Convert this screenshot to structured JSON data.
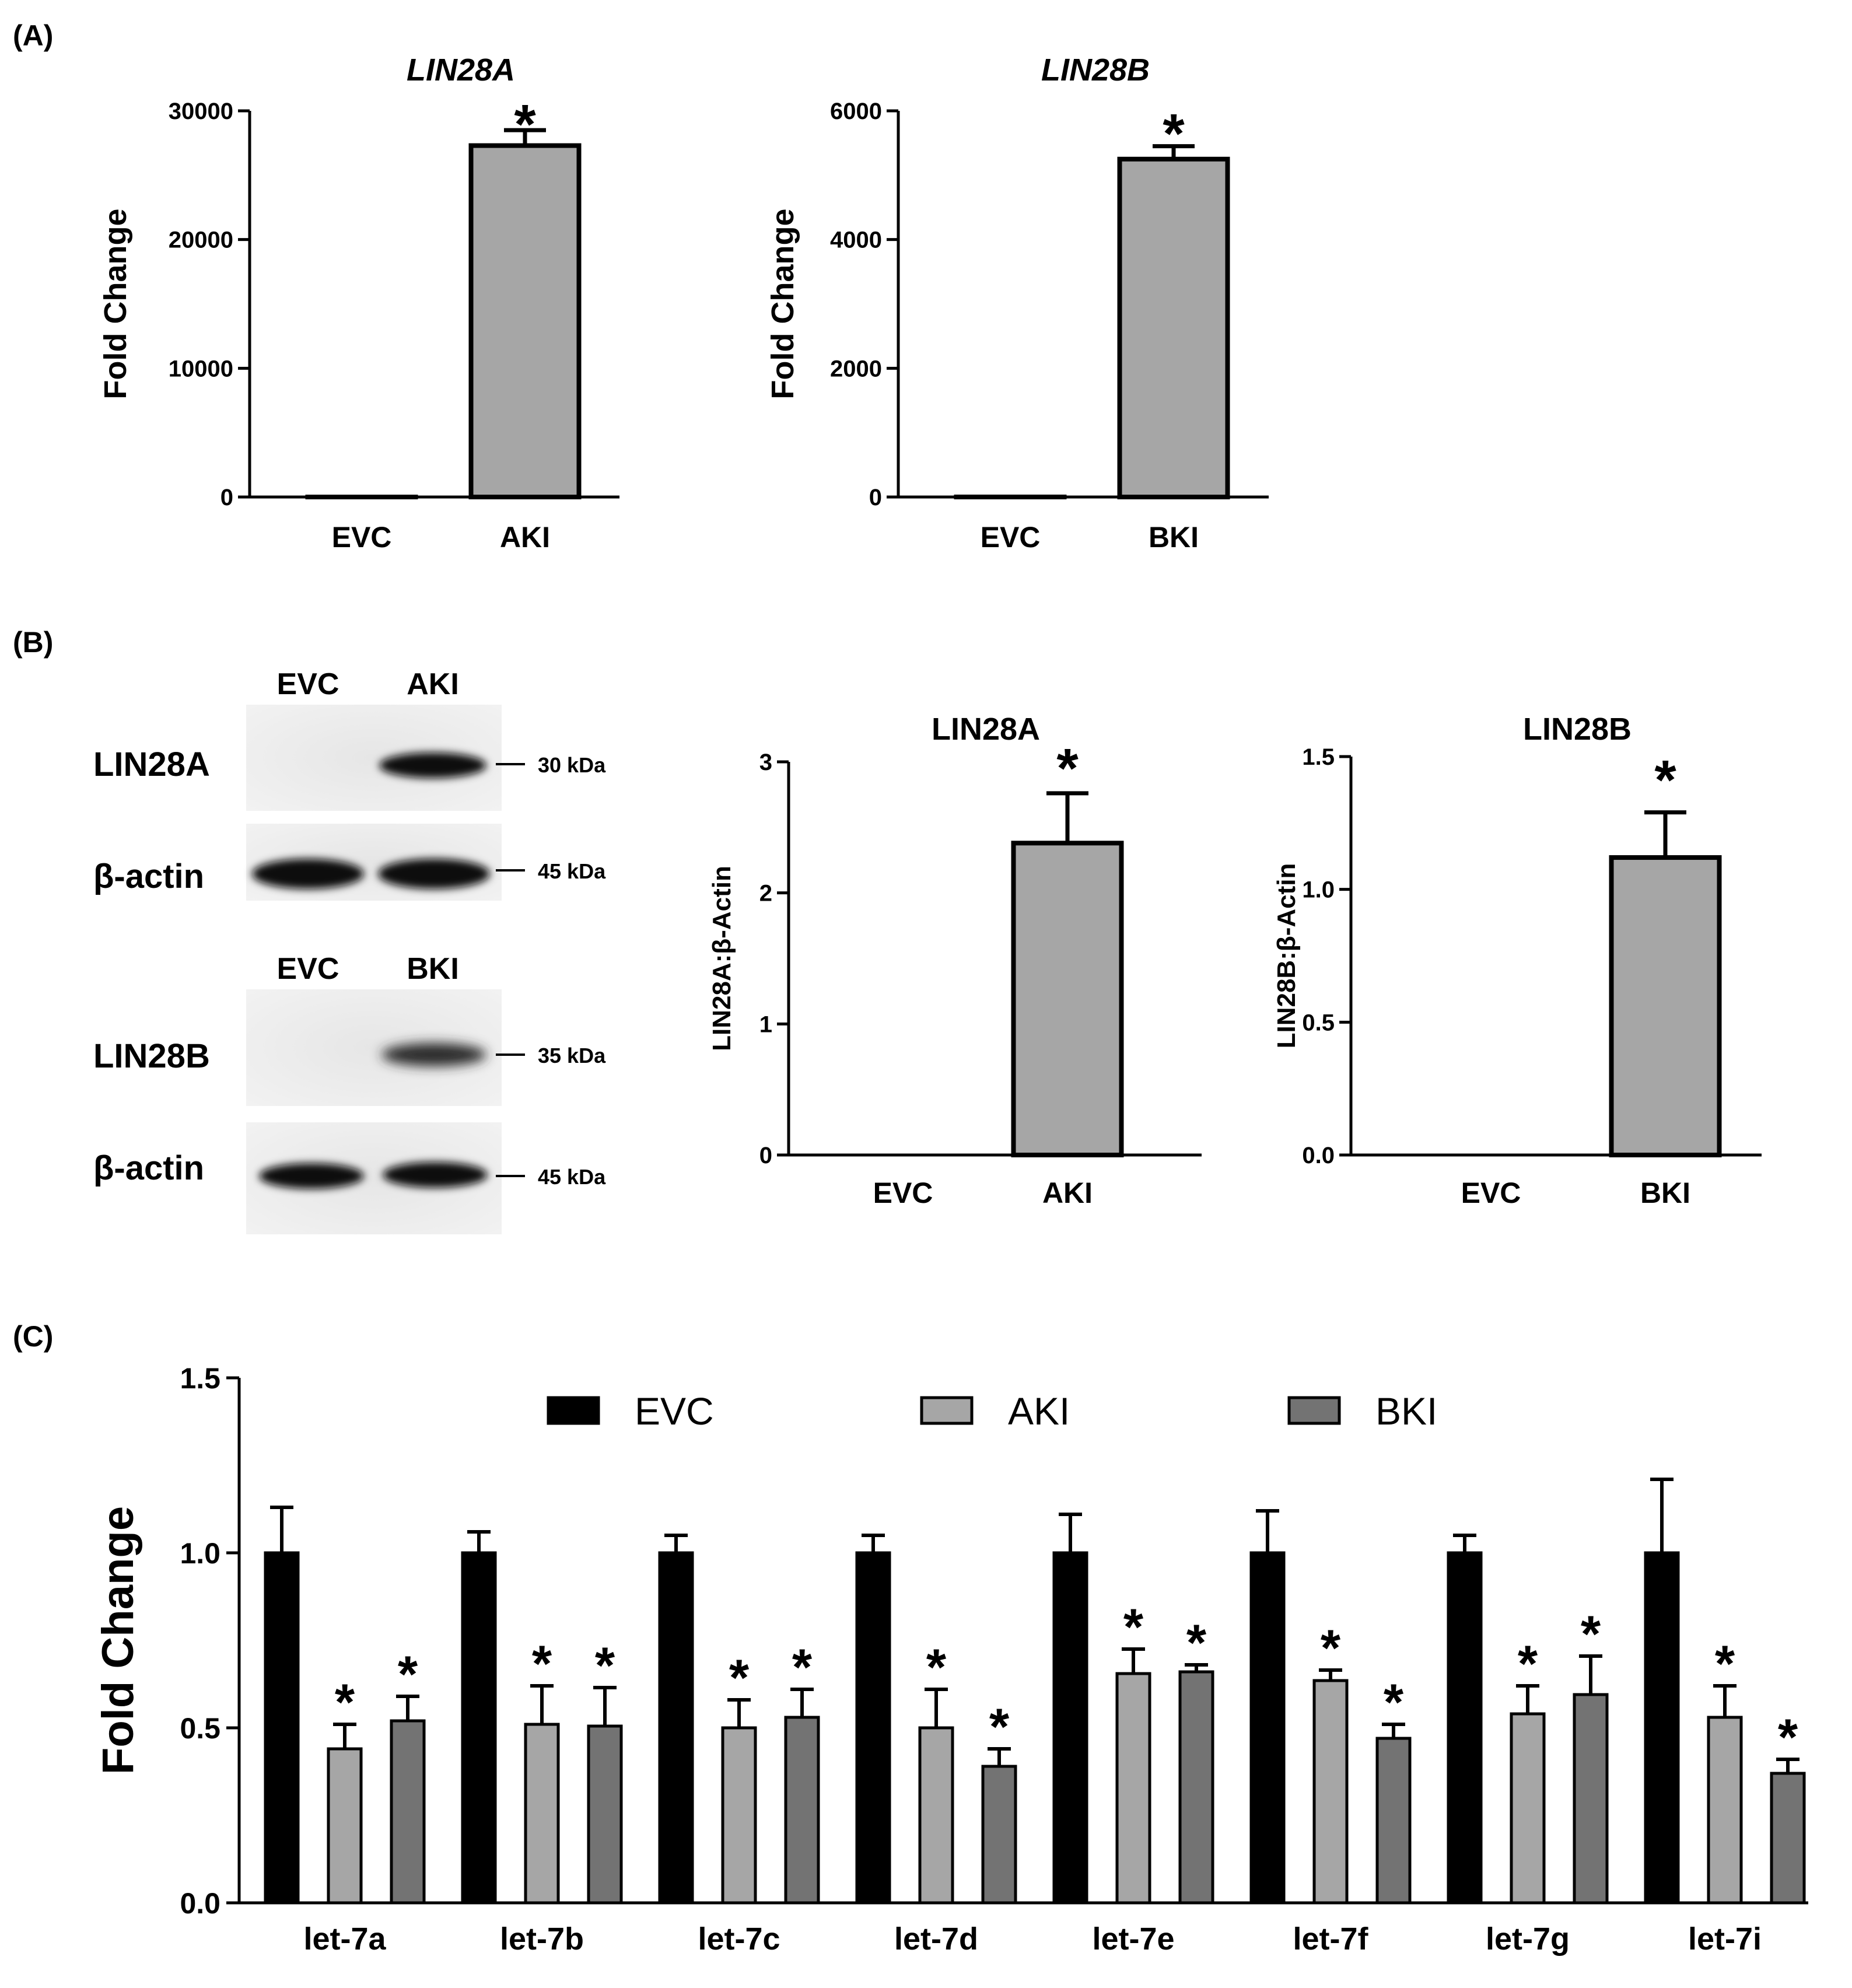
{
  "panels": {
    "a": "(A)",
    "b": "(B)",
    "c": "(C)"
  },
  "chart_data": [
    {
      "id": "a1",
      "type": "bar",
      "title": "LIN28A",
      "title_italic": true,
      "ylabel": "Fold Change",
      "xlabel": "",
      "categories": [
        "EVC",
        "AKI"
      ],
      "values": [
        1,
        27300
      ],
      "errors": [
        0,
        1200
      ],
      "significant": [
        false,
        true
      ],
      "ylim": [
        0,
        30000
      ],
      "yticks": [
        0,
        10000,
        20000,
        30000
      ],
      "ytick_labels": [
        "0",
        "10000",
        "20000",
        "30000"
      ],
      "bar_color": "#a6a6a6"
    },
    {
      "id": "a2",
      "type": "bar",
      "title": "LIN28B",
      "title_italic": true,
      "ylabel": "Fold Change",
      "xlabel": "",
      "categories": [
        "EVC",
        "BKI"
      ],
      "values": [
        1,
        5250
      ],
      "errors": [
        0,
        200
      ],
      "significant": [
        false,
        true
      ],
      "ylim": [
        0,
        6000
      ],
      "yticks": [
        0,
        2000,
        4000,
        6000
      ],
      "ytick_labels": [
        "0",
        "2000",
        "4000",
        "6000"
      ],
      "bar_color": "#a6a6a6"
    },
    {
      "id": "b1",
      "type": "bar",
      "title": "LIN28A",
      "title_italic": false,
      "ylabel": "LIN28A:β-Actin",
      "xlabel": "",
      "categories": [
        "EVC",
        "AKI"
      ],
      "values": [
        0,
        2.38
      ],
      "errors": [
        0,
        0.38
      ],
      "significant": [
        false,
        true
      ],
      "ylim": [
        0,
        3
      ],
      "yticks": [
        0,
        1,
        2,
        3
      ],
      "ytick_labels": [
        "0",
        "1",
        "2",
        "3"
      ],
      "bar_color": "#a6a6a6"
    },
    {
      "id": "b2",
      "type": "bar",
      "title": "LIN28B",
      "title_italic": false,
      "ylabel": "LIN28B:β-Actin",
      "xlabel": "",
      "categories": [
        "EVC",
        "BKI"
      ],
      "values": [
        0,
        1.12
      ],
      "errors": [
        0,
        0.17
      ],
      "significant": [
        false,
        true
      ],
      "ylim": [
        0,
        1.5
      ],
      "yticks": [
        0,
        0.5,
        1.0,
        1.5
      ],
      "ytick_labels": [
        "0.0",
        "0.5",
        "1.0",
        "1.5"
      ],
      "bar_color": "#a6a6a6"
    },
    {
      "id": "c",
      "type": "bar",
      "title": "",
      "ylabel": "Fold Change",
      "xlabel": "",
      "categories": [
        "let-7a",
        "let-7b",
        "let-7c",
        "let-7d",
        "let-7e",
        "let-7f",
        "let-7g",
        "let-7i"
      ],
      "ylim": [
        0,
        1.5
      ],
      "yticks": [
        0,
        0.5,
        1.0,
        1.5
      ],
      "ytick_labels": [
        "0.0",
        "0.5",
        "1.0",
        "1.5"
      ],
      "legend_position": "top",
      "series": [
        {
          "name": "EVC",
          "color": "#000000",
          "values": [
            1.0,
            1.0,
            1.0,
            1.0,
            1.0,
            1.0,
            1.0,
            1.0
          ],
          "errors": [
            0.13,
            0.06,
            0.05,
            0.05,
            0.11,
            0.12,
            0.05,
            0.21
          ],
          "significant": [
            false,
            false,
            false,
            false,
            false,
            false,
            false,
            false
          ]
        },
        {
          "name": "AKI",
          "color": "#a6a6a6",
          "values": [
            0.44,
            0.51,
            0.5,
            0.5,
            0.655,
            0.635,
            0.54,
            0.53
          ],
          "errors": [
            0.07,
            0.11,
            0.08,
            0.11,
            0.07,
            0.03,
            0.08,
            0.09
          ],
          "significant": [
            true,
            true,
            true,
            true,
            true,
            true,
            true,
            true
          ]
        },
        {
          "name": "BKI",
          "color": "#737373",
          "values": [
            0.52,
            0.505,
            0.53,
            0.39,
            0.66,
            0.47,
            0.595,
            0.37
          ],
          "errors": [
            0.07,
            0.11,
            0.08,
            0.05,
            0.02,
            0.04,
            0.11,
            0.04
          ],
          "significant": [
            true,
            true,
            true,
            true,
            true,
            true,
            true,
            true
          ]
        }
      ]
    }
  ],
  "blots": {
    "top": {
      "lanes": [
        "EVC",
        "AKI"
      ],
      "rows": [
        {
          "label": "LIN28A",
          "kda": "30 kDa"
        },
        {
          "label": "β-actin",
          "kda": "45 kDa"
        }
      ]
    },
    "bottom": {
      "lanes": [
        "EVC",
        "BKI"
      ],
      "rows": [
        {
          "label": "LIN28B",
          "kda": "35 kDa"
        },
        {
          "label": "β-actin",
          "kda": "45 kDa"
        }
      ]
    }
  },
  "significance_marker": "*"
}
